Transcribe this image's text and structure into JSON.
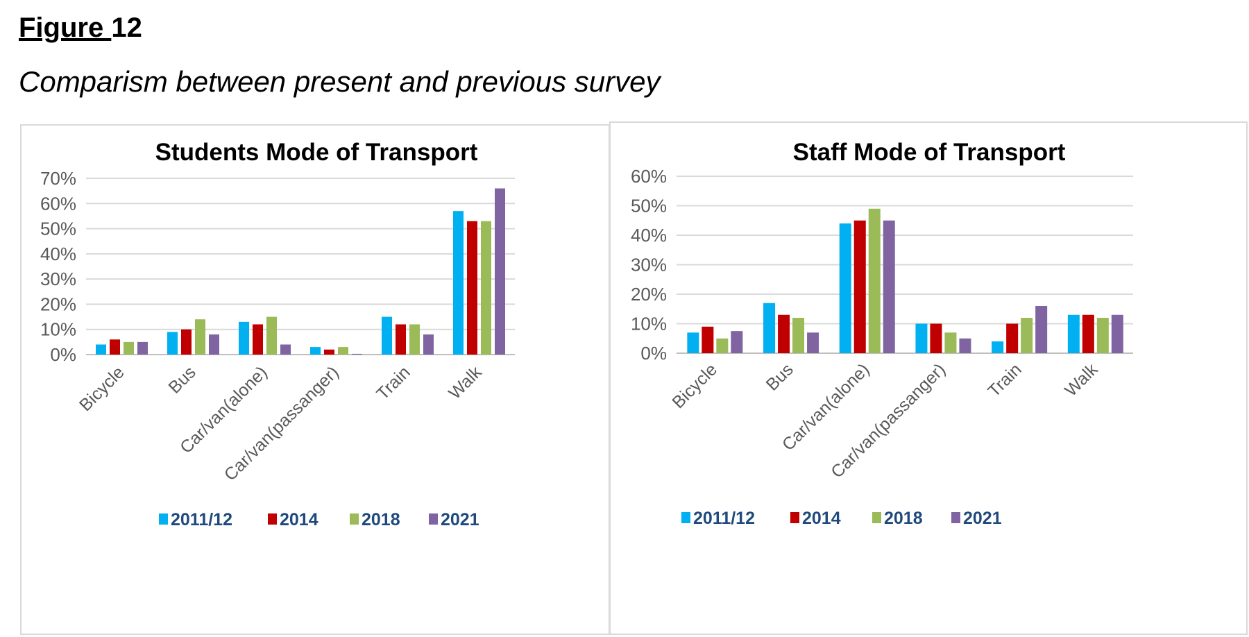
{
  "figure": {
    "label_word": "Figure ",
    "label_number": "12",
    "subtitle": "Comparism between present and previous survey"
  },
  "colors": {
    "2011/12": "#00b0f0",
    "2014": "#c00000",
    "2018": "#9bbb59",
    "2021": "#8064a2",
    "grid": "#d9d9d9",
    "axis_text": "#595959",
    "legend_text": "#1f497d"
  },
  "chart_data": [
    {
      "type": "bar",
      "title": "Students Mode of Transport",
      "xlabel": "",
      "ylabel": "",
      "categories": [
        "Bicycle",
        "Bus",
        "Car/van(alone)",
        "Car/van(passanger)",
        "Train",
        "Walk"
      ],
      "ylim": [
        0,
        70
      ],
      "yticks": [
        "0%",
        "10%",
        "20%",
        "30%",
        "40%",
        "50%",
        "60%",
        "70%"
      ],
      "grid": true,
      "legend_position": "bottom",
      "series": [
        {
          "name": "2011/12",
          "values": [
            4,
            9,
            13,
            3,
            15,
            57
          ]
        },
        {
          "name": "2014",
          "values": [
            6,
            10,
            12,
            2,
            12,
            53
          ]
        },
        {
          "name": "2018",
          "values": [
            5,
            14,
            15,
            3,
            12,
            53
          ]
        },
        {
          "name": "2021",
          "values": [
            5,
            8,
            4,
            0.3,
            8,
            66
          ]
        }
      ]
    },
    {
      "type": "bar",
      "title": "Staff Mode of Transport",
      "xlabel": "",
      "ylabel": "",
      "categories": [
        "Bicycle",
        "Bus",
        "Car/van(alone)",
        "Car/van(passanger)",
        "Train",
        "Walk"
      ],
      "ylim": [
        0,
        60
      ],
      "yticks": [
        "0%",
        "10%",
        "20%",
        "30%",
        "40%",
        "50%",
        "60%"
      ],
      "grid": true,
      "legend_position": "bottom",
      "series": [
        {
          "name": "2011/12",
          "values": [
            7,
            17,
            44,
            10,
            4,
            13
          ]
        },
        {
          "name": "2014",
          "values": [
            9,
            13,
            45,
            10,
            10,
            13
          ]
        },
        {
          "name": "2018",
          "values": [
            5,
            12,
            49,
            7,
            12,
            12
          ]
        },
        {
          "name": "2021",
          "values": [
            7.5,
            7,
            45,
            5,
            16,
            13
          ]
        }
      ]
    }
  ]
}
